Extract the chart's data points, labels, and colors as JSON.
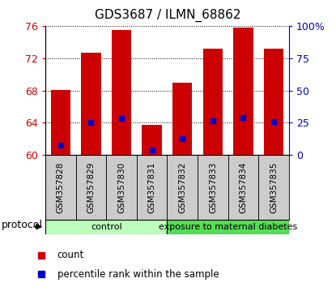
{
  "title": "GDS3687 / ILMN_68862",
  "samples": [
    "GSM357828",
    "GSM357829",
    "GSM357830",
    "GSM357831",
    "GSM357832",
    "GSM357833",
    "GSM357834",
    "GSM357835"
  ],
  "bar_top": [
    68.1,
    72.7,
    75.5,
    63.7,
    69.0,
    73.2,
    75.8,
    73.2
  ],
  "bar_bottom": 60.0,
  "percentile_values": [
    61.2,
    64.0,
    64.5,
    60.6,
    62.0,
    64.2,
    64.6,
    64.1
  ],
  "ylim": [
    60,
    76
  ],
  "yticks_left": [
    60,
    64,
    68,
    72,
    76
  ],
  "yticks_right": [
    0,
    25,
    50,
    75,
    100
  ],
  "ytick_right_labels": [
    "0",
    "25",
    "50",
    "75",
    "100%"
  ],
  "bar_color": "#cc0000",
  "percentile_color": "#0000cc",
  "bar_width": 0.65,
  "groups": [
    {
      "label": "control",
      "start": 0,
      "end": 4,
      "color": "#bbffbb"
    },
    {
      "label": "exposure to maternal diabetes",
      "start": 4,
      "end": 8,
      "color": "#55dd55"
    }
  ],
  "group_row_label": "protocol",
  "legend_items": [
    {
      "color": "#cc0000",
      "label": "count"
    },
    {
      "color": "#0000cc",
      "label": "percentile rank within the sample"
    }
  ],
  "left_color": "#cc0000",
  "right_color": "#0000bb",
  "sample_box_color": "#cccccc",
  "title_fontsize": 11
}
